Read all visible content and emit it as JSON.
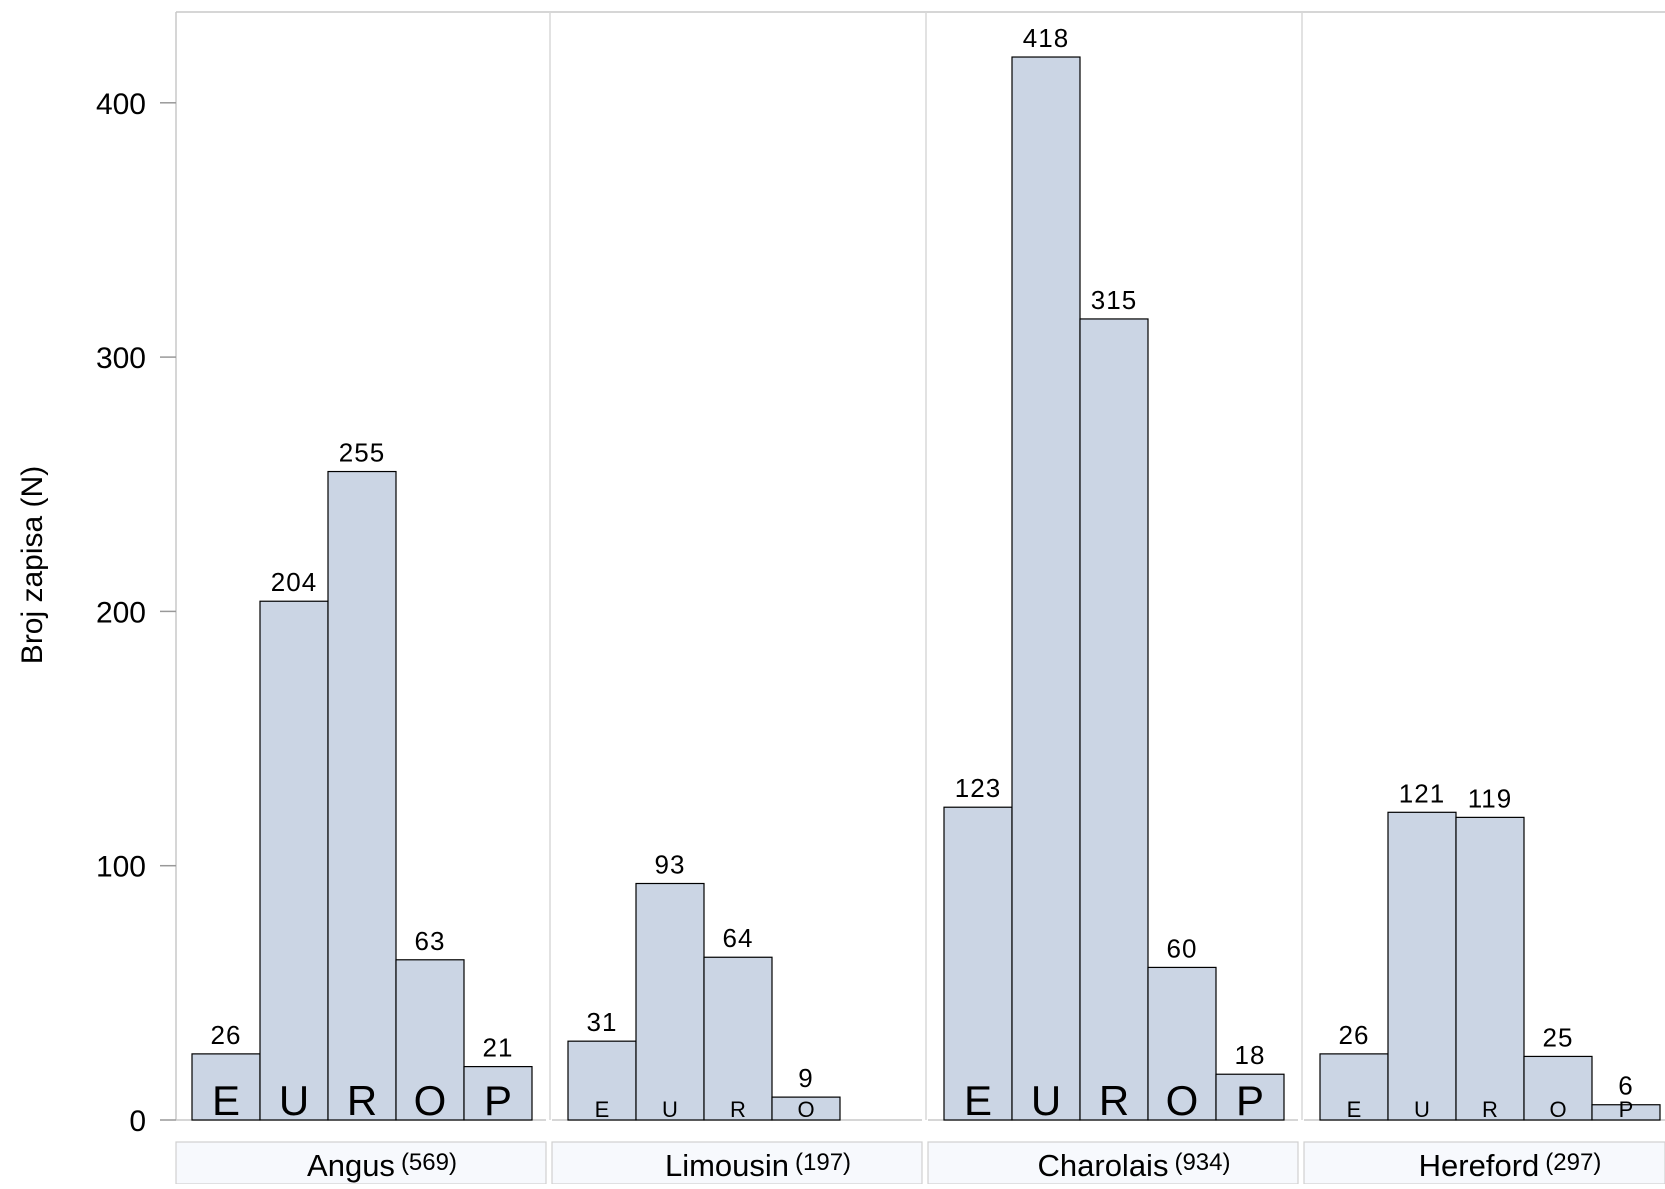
{
  "chart_data": {
    "type": "bar",
    "ylabel": "Broj zapisa (N)",
    "ylim": [
      0,
      435
    ],
    "yticks": [
      0,
      100,
      200,
      300,
      400
    ],
    "grid": false,
    "bar_color": "#cbd5e4",
    "panel_bg": "#f7f9fd",
    "categories": [
      "E",
      "U",
      "R",
      "O",
      "P"
    ],
    "panels": [
      {
        "name": "Angus",
        "total": "(569)",
        "values": [
          26,
          204,
          255,
          63,
          21
        ],
        "bar_labels": [
          "E",
          "U",
          "R",
          "O",
          "P"
        ],
        "label_size": "large"
      },
      {
        "name": "Limousin",
        "total": "(197)",
        "values": [
          31,
          93,
          64,
          9,
          null
        ],
        "bar_labels": [
          "E",
          "U",
          "R",
          "O",
          ""
        ],
        "label_size": "small"
      },
      {
        "name": "Charolais",
        "total": "(934)",
        "values": [
          123,
          418,
          315,
          60,
          18
        ],
        "bar_labels": [
          "E",
          "U",
          "R",
          "O",
          "P"
        ],
        "label_size": "large"
      },
      {
        "name": "Hereford",
        "total": "(297)",
        "values": [
          26,
          121,
          119,
          25,
          6
        ],
        "bar_labels": [
          "E",
          "U",
          "R",
          "O",
          "P"
        ],
        "label_size": "small"
      }
    ]
  }
}
